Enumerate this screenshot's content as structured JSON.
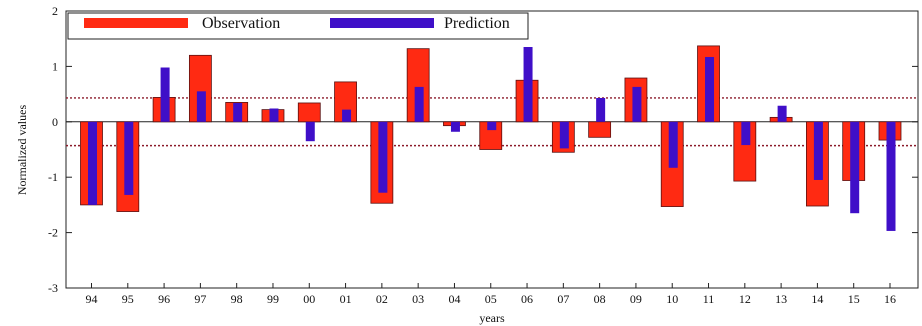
{
  "chart_data": {
    "type": "bar",
    "title": "",
    "xlabel": "years",
    "ylabel": "Normalized values",
    "ylim": [
      -3,
      2
    ],
    "yticks": [
      -3,
      -2,
      -1,
      0,
      1,
      2
    ],
    "grid": false,
    "legend_position": "top-left",
    "threshold_lines": [
      0.43,
      -0.43
    ],
    "categories": [
      "94",
      "95",
      "96",
      "97",
      "98",
      "99",
      "00",
      "01",
      "02",
      "03",
      "04",
      "05",
      "06",
      "07",
      "08",
      "09",
      "10",
      "11",
      "12",
      "13",
      "14",
      "15",
      "16"
    ],
    "series": [
      {
        "name": "Observation",
        "color": "#ff2a12",
        "values": [
          -1.5,
          -1.62,
          0.44,
          1.2,
          0.35,
          0.22,
          0.34,
          0.72,
          -1.47,
          1.32,
          -0.07,
          -0.5,
          0.75,
          -0.55,
          -0.28,
          0.79,
          -1.53,
          1.37,
          -1.07,
          0.08,
          -1.52,
          -1.06,
          -0.33
        ]
      },
      {
        "name": "Prediction",
        "color": "#3f0fc8",
        "values": [
          -1.5,
          -1.32,
          0.98,
          0.55,
          0.34,
          0.24,
          -0.35,
          0.22,
          -1.28,
          0.63,
          -0.18,
          -0.15,
          1.35,
          -0.48,
          0.43,
          0.63,
          -0.83,
          1.17,
          -0.42,
          0.29,
          -1.05,
          -1.65,
          -1.97
        ]
      }
    ]
  }
}
